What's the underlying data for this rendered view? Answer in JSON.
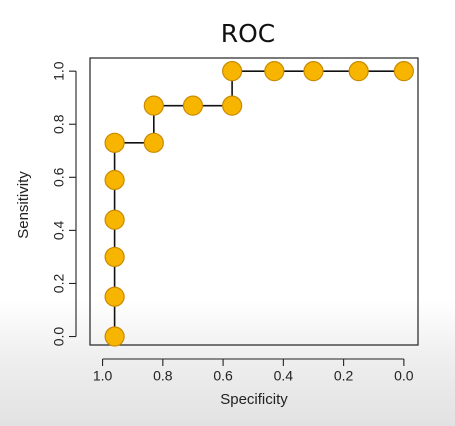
{
  "chart_data": {
    "type": "line",
    "title": "ROC",
    "xlabel": "Specificity",
    "ylabel": "Sensitivity",
    "xlim": [
      1.0,
      0.0
    ],
    "ylim": [
      0.0,
      1.0
    ],
    "x_ticks": [
      "1.0",
      "0.8",
      "0.6",
      "0.4",
      "0.2",
      "0.0"
    ],
    "y_ticks": [
      "0.0",
      "0.2",
      "0.4",
      "0.6",
      "0.8",
      "1.0"
    ],
    "x_tick_values": [
      1.0,
      0.8,
      0.6,
      0.4,
      0.2,
      0.0
    ],
    "y_tick_values": [
      0.0,
      0.2,
      0.4,
      0.6,
      0.8,
      1.0
    ],
    "grid": false,
    "legend": "none",
    "colors": {
      "marker_fill": "#f7b500",
      "marker_stroke": "#c98a00",
      "line": "#111111",
      "frame": "#222222"
    },
    "series": [
      {
        "x": [
          0.96,
          0.96,
          0.96,
          0.96,
          0.96,
          0.96,
          0.96,
          0.83,
          0.83,
          0.7,
          0.57,
          0.57,
          0.43,
          0.3,
          0.15,
          0.0
        ],
        "y": [
          0.0,
          0.15,
          0.3,
          0.44,
          0.59,
          0.73,
          0.73,
          0.73,
          0.87,
          0.87,
          0.87,
          1.0,
          1.0,
          1.0,
          1.0,
          1.0
        ],
        "markers": [
          {
            "x": 0.96,
            "y": 0.0
          },
          {
            "x": 0.96,
            "y": 0.15
          },
          {
            "x": 0.96,
            "y": 0.3
          },
          {
            "x": 0.96,
            "y": 0.44
          },
          {
            "x": 0.96,
            "y": 0.59
          },
          {
            "x": 0.96,
            "y": 0.73
          },
          {
            "x": 0.83,
            "y": 0.73
          },
          {
            "x": 0.83,
            "y": 0.87
          },
          {
            "x": 0.7,
            "y": 0.87
          },
          {
            "x": 0.57,
            "y": 0.87
          },
          {
            "x": 0.57,
            "y": 1.0
          },
          {
            "x": 0.43,
            "y": 1.0
          },
          {
            "x": 0.3,
            "y": 1.0
          },
          {
            "x": 0.15,
            "y": 1.0
          },
          {
            "x": 0.0,
            "y": 1.0
          }
        ]
      }
    ]
  }
}
